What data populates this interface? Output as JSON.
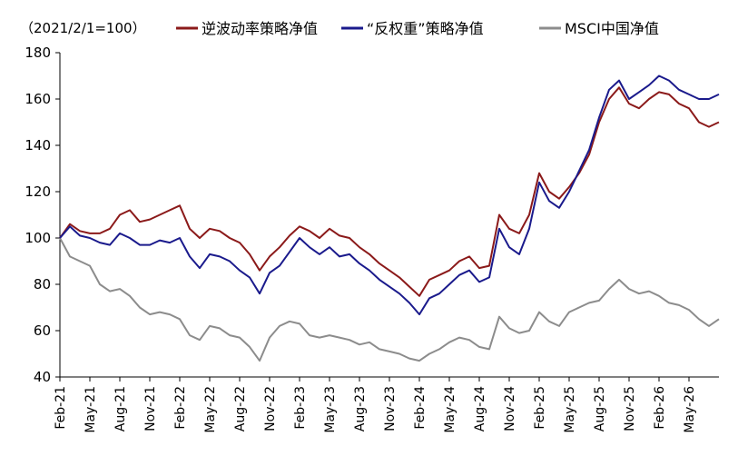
{
  "chart_data": {
    "type": "line",
    "subtitle": "（2021/2/1=100）",
    "xlabel": "",
    "ylabel": "",
    "ylim": [
      40,
      180
    ],
    "yticks": [
      40,
      60,
      80,
      100,
      120,
      140,
      160,
      180
    ],
    "grid": false,
    "legend_position": "top",
    "x_ticks": [
      "Feb-21",
      "May-21",
      "Aug-21",
      "Nov-21",
      "Feb-22",
      "May-22",
      "Aug-22",
      "Nov-22",
      "Feb-23",
      "May-23",
      "Aug-23",
      "Nov-23",
      "Feb-24",
      "May-24",
      "Aug-24",
      "Nov-24",
      "Feb-25",
      "May-25",
      "Aug-25",
      "Nov-25",
      "Feb-26",
      "May-26"
    ],
    "x": [
      "2021-02",
      "2021-03",
      "2021-04",
      "2021-05",
      "2021-06",
      "2021-07",
      "2021-08",
      "2021-09",
      "2021-10",
      "2021-11",
      "2021-12",
      "2022-01",
      "2022-02",
      "2022-03",
      "2022-04",
      "2022-05",
      "2022-06",
      "2022-07",
      "2022-08",
      "2022-09",
      "2022-10",
      "2022-11",
      "2022-12",
      "2023-01",
      "2023-02",
      "2023-03",
      "2023-04",
      "2023-05",
      "2023-06",
      "2023-07",
      "2023-08",
      "2023-09",
      "2023-10",
      "2023-11",
      "2023-12",
      "2024-01",
      "2024-02",
      "2024-03",
      "2024-04",
      "2024-05",
      "2024-06",
      "2024-07",
      "2024-08",
      "2024-09",
      "2024-10",
      "2024-11",
      "2024-12",
      "2025-01",
      "2025-02",
      "2025-03",
      "2025-04",
      "2025-05",
      "2025-06",
      "2025-07",
      "2025-08",
      "2025-09",
      "2025-10",
      "2025-11",
      "2025-12",
      "2026-01",
      "2026-02",
      "2026-03",
      "2026-04",
      "2026-05",
      "2026-06",
      "2026-07",
      "2026-08"
    ],
    "series": [
      {
        "name": "逆波动率策略净值",
        "color": "#8B1A1A",
        "values": [
          100,
          106,
          103,
          102,
          102,
          104,
          110,
          112,
          107,
          108,
          110,
          112,
          114,
          104,
          100,
          104,
          103,
          100,
          98,
          93,
          86,
          92,
          96,
          101,
          105,
          103,
          100,
          104,
          101,
          100,
          96,
          93,
          89,
          86,
          83,
          79,
          75,
          82,
          84,
          86,
          90,
          92,
          87,
          88,
          110,
          104,
          102,
          110,
          128,
          120,
          117,
          122,
          128,
          136,
          150,
          160,
          165,
          158,
          156,
          160,
          163,
          162,
          158,
          156,
          150,
          148,
          150
        ]
      },
      {
        "name": "“反权重”策略净值",
        "color": "#1A1A8C",
        "values": [
          100,
          105,
          101,
          100,
          98,
          97,
          102,
          100,
          97,
          97,
          99,
          98,
          100,
          92,
          87,
          93,
          92,
          90,
          86,
          83,
          76,
          85,
          88,
          94,
          100,
          96,
          93,
          96,
          92,
          93,
          89,
          86,
          82,
          79,
          76,
          72,
          67,
          74,
          76,
          80,
          84,
          86,
          81,
          83,
          104,
          96,
          93,
          104,
          124,
          116,
          113,
          120,
          129,
          138,
          152,
          164,
          168,
          160,
          163,
          166,
          170,
          168,
          164,
          162,
          160,
          160,
          162
        ]
      },
      {
        "name": "MSCI中国净值",
        "color": "#8C8C8C",
        "values": [
          100,
          92,
          90,
          88,
          80,
          77,
          78,
          75,
          70,
          67,
          68,
          67,
          65,
          58,
          56,
          62,
          61,
          58,
          57,
          53,
          47,
          57,
          62,
          64,
          63,
          58,
          57,
          58,
          57,
          56,
          54,
          55,
          52,
          51,
          50,
          48,
          47,
          50,
          52,
          55,
          57,
          56,
          53,
          52,
          66,
          61,
          59,
          60,
          68,
          64,
          62,
          68,
          70,
          72,
          73,
          78,
          82,
          78,
          76,
          77,
          75,
          72,
          71,
          69,
          65,
          62,
          65
        ]
      }
    ]
  }
}
